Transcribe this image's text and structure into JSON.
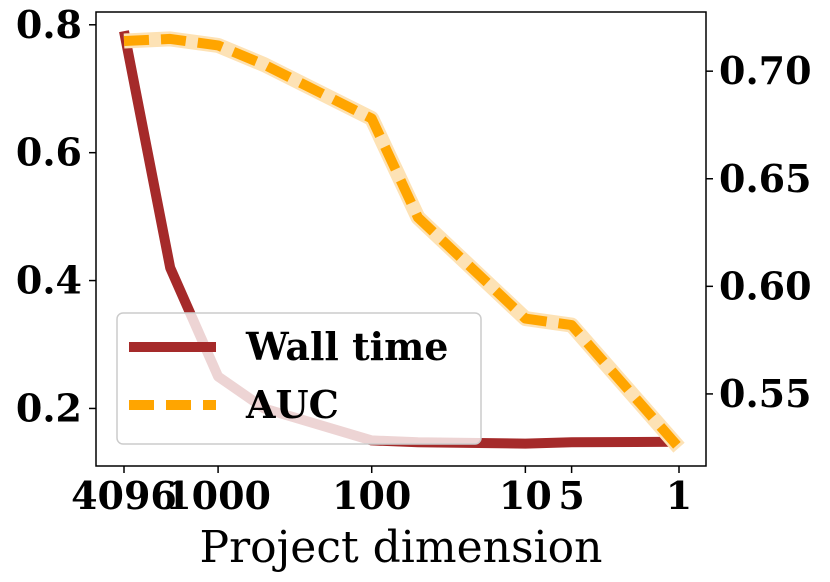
{
  "chart_data": {
    "type": "line",
    "xlabel": "Project dimension",
    "x_categories": [
      "4096",
      "2048",
      "1000",
      "500",
      "100",
      "50",
      "10",
      "5",
      "1"
    ],
    "x_tick_labels": [
      "4096",
      "1000",
      "100",
      "10",
      "5",
      "1"
    ],
    "x_scale": "log (reversed)",
    "y_left": {
      "ticks": [
        "0.2",
        "0.4",
        "0.6",
        "0.8"
      ],
      "ylim": [
        0.11,
        0.82
      ]
    },
    "y_right": {
      "ticks": [
        "0.55",
        "0.60",
        "0.65",
        "0.70"
      ],
      "ylim": [
        0.5165,
        0.7275
      ]
    },
    "series": [
      {
        "name": "Wall time",
        "axis": "left",
        "color": "#a52a2a",
        "style": "solid",
        "x": [
          "4096",
          "2048",
          "1000",
          "500",
          "100",
          "50",
          "10",
          "5",
          "1"
        ],
        "values": [
          0.79,
          0.42,
          0.25,
          0.2,
          0.15,
          0.147,
          0.145,
          0.147,
          0.148
        ]
      },
      {
        "name": "AUC",
        "axis": "right",
        "color": "#ffa500",
        "style": "dashed",
        "x": [
          "4096",
          "2048",
          "1000",
          "500",
          "100",
          "50",
          "10",
          "5",
          "1"
        ],
        "values": [
          0.714,
          0.715,
          0.712,
          0.703,
          0.678,
          0.632,
          0.585,
          0.582,
          0.525
        ]
      }
    ],
    "legend": {
      "position": "lower-left",
      "entries": [
        "Wall time",
        "AUC"
      ]
    },
    "grid": false
  }
}
